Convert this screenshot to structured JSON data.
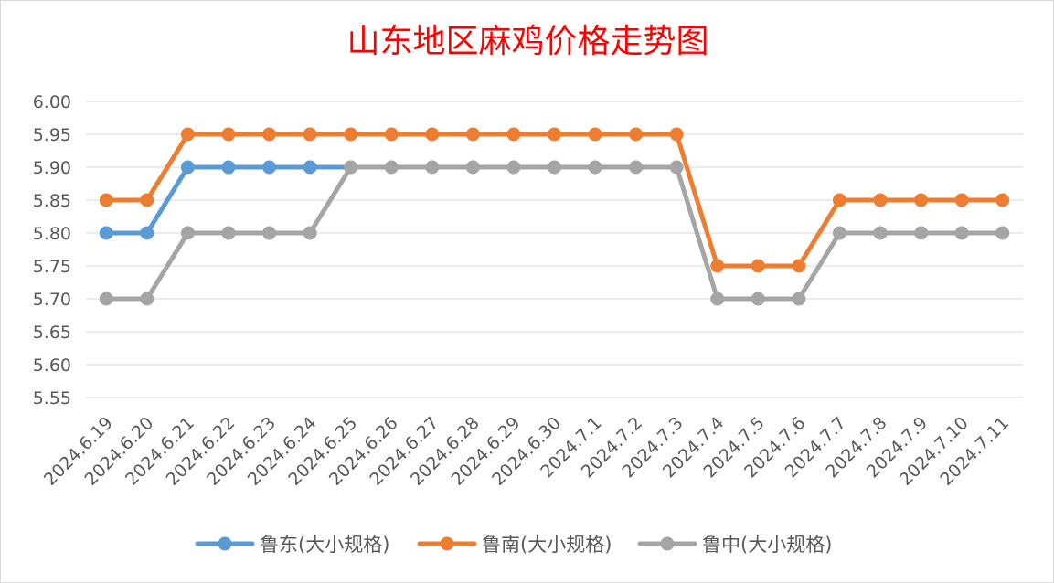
{
  "chart_data": {
    "type": "line",
    "title": "山东地区麻鸡价格走势图",
    "xlabel": "",
    "ylabel": "",
    "categories": [
      "2024.6.19",
      "2024.6.20",
      "2024.6.21",
      "2024.6.22",
      "2024.6.23",
      "2024.6.24",
      "2024.6.25",
      "2024.6.26",
      "2024.6.27",
      "2024.6.28",
      "2024.6.29",
      "2024.6.30",
      "2024.7.1",
      "2024.7.2",
      "2024.7.3",
      "2024.7.4",
      "2024.7.5",
      "2024.7.6",
      "2024.7.7",
      "2024.7.8",
      "2024.7.9",
      "2024.7.10",
      "2024.7.11"
    ],
    "ylim": [
      5.55,
      6.0
    ],
    "yticks": [
      "6.00",
      "5.95",
      "5.90",
      "5.85",
      "5.80",
      "5.75",
      "5.70",
      "5.65",
      "5.60",
      "5.55"
    ],
    "grid": true,
    "legend_position": "bottom",
    "series": [
      {
        "name": "鲁东(大小规格)",
        "color": "#5b9bd5",
        "values": [
          5.8,
          5.8,
          5.9,
          5.9,
          5.9,
          5.9,
          5.9,
          null,
          null,
          null,
          null,
          null,
          null,
          null,
          null,
          null,
          null,
          null,
          null,
          null,
          null,
          null,
          null
        ]
      },
      {
        "name": "鲁南(大小规格)",
        "color": "#ed7d31",
        "values": [
          5.85,
          5.85,
          5.95,
          5.95,
          5.95,
          5.95,
          5.95,
          5.95,
          5.95,
          5.95,
          5.95,
          5.95,
          5.95,
          5.95,
          5.95,
          5.75,
          5.75,
          5.75,
          5.85,
          5.85,
          5.85,
          5.85,
          5.85
        ]
      },
      {
        "name": "鲁中(大小规格)",
        "color": "#a5a5a5",
        "values": [
          5.7,
          5.7,
          5.8,
          5.8,
          5.8,
          5.8,
          5.9,
          5.9,
          5.9,
          5.9,
          5.9,
          5.9,
          5.9,
          5.9,
          5.9,
          5.7,
          5.7,
          5.7,
          5.8,
          5.8,
          5.8,
          5.8,
          5.8
        ]
      }
    ]
  }
}
